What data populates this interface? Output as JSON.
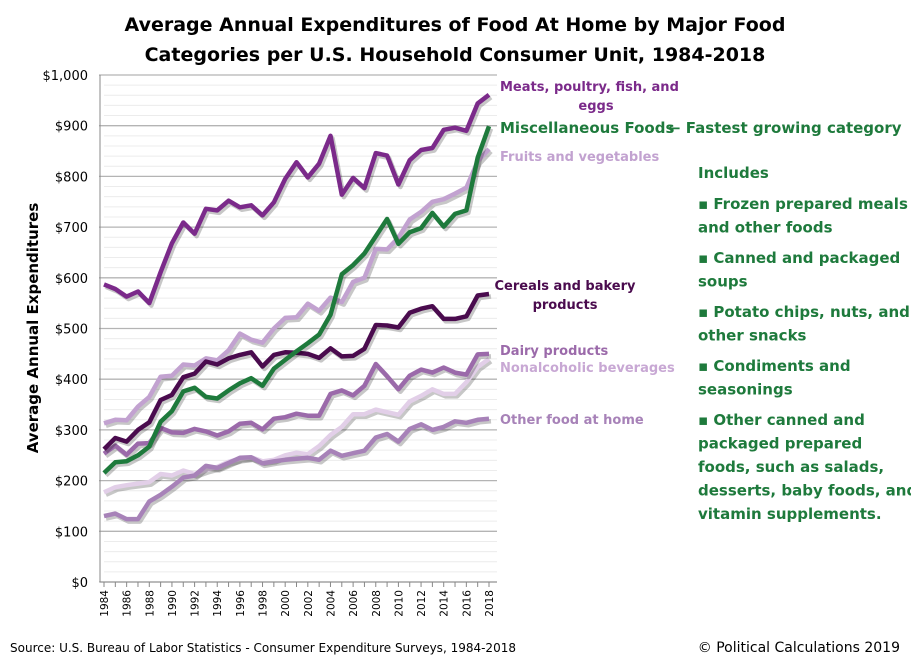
{
  "chart_data": {
    "type": "line",
    "title": [
      "Average Annual Expenditures of Food At Home by Major Food",
      "Categories per U.S. Household Consumer Unit, 1984-2018"
    ],
    "xlabel": "",
    "ylabel": "Average Annual Expenditures",
    "ylim": [
      0,
      1000
    ],
    "ytick_step": 100,
    "ytick_prefix": "$",
    "grid": true,
    "x": [
      1984,
      1985,
      1986,
      1987,
      1988,
      1989,
      1990,
      1991,
      1992,
      1993,
      1994,
      1995,
      1996,
      1997,
      1998,
      1999,
      2000,
      2001,
      2002,
      2003,
      2004,
      2005,
      2006,
      2007,
      2008,
      2009,
      2010,
      2011,
      2012,
      2013,
      2014,
      2015,
      2016,
      2017,
      2018
    ],
    "xtick_labels": [
      "1984",
      "1986",
      "1988",
      "1990",
      "1992",
      "1994",
      "1996",
      "1998",
      "2000",
      "2002",
      "2004",
      "2006",
      "2008",
      "2010",
      "2012",
      "2014",
      "2016",
      "2018"
    ],
    "series": [
      {
        "name": "Nonalcoholic beverages",
        "color": "#e2cfe8",
        "label_color": "#c8a8d4",
        "values": [
          177,
          187,
          191,
          194,
          197,
          213,
          210,
          220,
          213,
          221,
          227,
          237,
          243,
          246,
          238,
          241,
          250,
          255,
          252,
          268,
          290,
          306,
          331,
          331,
          340,
          335,
          330,
          356,
          367,
          380,
          371,
          371,
          394,
          424,
          440
        ]
      },
      {
        "name": "Other food at home",
        "color": "#a782b8",
        "label_color": "#a782b8",
        "values": [
          130,
          135,
          124,
          124,
          159,
          172,
          188,
          206,
          210,
          229,
          225,
          235,
          245,
          246,
          234,
          238,
          241,
          243,
          245,
          241,
          259,
          249,
          254,
          259,
          285,
          292,
          277,
          302,
          311,
          300,
          306,
          317,
          314,
          320,
          322
        ]
      },
      {
        "name": "Dairy products",
        "color": "#9b6aaa",
        "label_color": "#9b6aaa",
        "values": [
          253,
          269,
          251,
          273,
          274,
          304,
          295,
          294,
          302,
          297,
          289,
          297,
          312,
          314,
          301,
          322,
          325,
          332,
          328,
          328,
          371,
          378,
          368,
          387,
          430,
          406,
          380,
          407,
          419,
          413,
          423,
          413,
          409,
          449,
          450
        ]
      },
      {
        "name": "Fruits and vegetables",
        "color": "#c2a2d0",
        "label_color": "#c2a2d0",
        "values": [
          313,
          320,
          319,
          346,
          365,
          405,
          407,
          429,
          427,
          441,
          437,
          457,
          490,
          478,
          472,
          500,
          521,
          522,
          549,
          535,
          561,
          552,
          592,
          600,
          657,
          656,
          679,
          715,
          730,
          750,
          755,
          766,
          778,
          830,
          854
        ]
      },
      {
        "name": "Cereals and bakery products",
        "color": "#4a0b4e",
        "label_color": "#4a0b4e",
        "values": [
          262,
          284,
          277,
          300,
          315,
          359,
          369,
          404,
          411,
          435,
          429,
          441,
          448,
          453,
          425,
          448,
          453,
          452,
          450,
          442,
          461,
          445,
          446,
          460,
          507,
          506,
          502,
          531,
          539,
          544,
          519,
          519,
          524,
          565,
          568
        ]
      },
      {
        "name": "Miscellaneous Foods",
        "color": "#1e7a3c",
        "label_color": "#1e7a3c",
        "values": [
          215,
          236,
          238,
          250,
          267,
          316,
          337,
          376,
          383,
          365,
          362,
          378,
          392,
          402,
          387,
          421,
          438,
          455,
          471,
          488,
          527,
          607,
          625,
          648,
          682,
          716,
          667,
          690,
          698,
          728,
          701,
          726,
          733,
          837,
          899
        ]
      },
      {
        "name": "Meats, poultry, fish, and eggs",
        "color": "#7b2a8a",
        "label_color": "#7b2a8a",
        "values": [
          587,
          578,
          563,
          573,
          550,
          611,
          668,
          709,
          687,
          736,
          733,
          752,
          739,
          743,
          723,
          749,
          795,
          828,
          798,
          825,
          880,
          764,
          797,
          777,
          846,
          841,
          784,
          832,
          852,
          856,
          892,
          896,
          890,
          944,
          961
        ]
      }
    ],
    "annotations": {
      "meats_label": [
        "Meats, poultry, fish, and",
        "eggs"
      ],
      "misc_label": "Miscellaneous Foods",
      "misc_arrow_note": "← Fastest growing category",
      "fruits_label": "Fruits and vegetables",
      "cereals_label": [
        "Cereals and bakery",
        "products"
      ],
      "dairy_label": "Dairy products",
      "bev_label": "Nonalcoholic beverages",
      "other_label": "Other food at home",
      "includes_heading": "Includes",
      "includes_lines": [
        "▪ Frozen prepared meals",
        "and other foods",
        "",
        "▪ Canned and packaged",
        "soups",
        "",
        "▪ Potato chips, nuts, and",
        "other snacks",
        "",
        "▪ Condiments and",
        "seasonings",
        "",
        "▪ Other canned and",
        "packaged prepared",
        "foods, such as salads,",
        "desserts, baby foods, and",
        "vitamin supplements."
      ]
    }
  },
  "footer": {
    "source": "Source: U.S. Bureau of Labor Statistics - Consumer Expenditure Surveys, 1984-2018",
    "copyright": "© Political Calculations 2019"
  }
}
